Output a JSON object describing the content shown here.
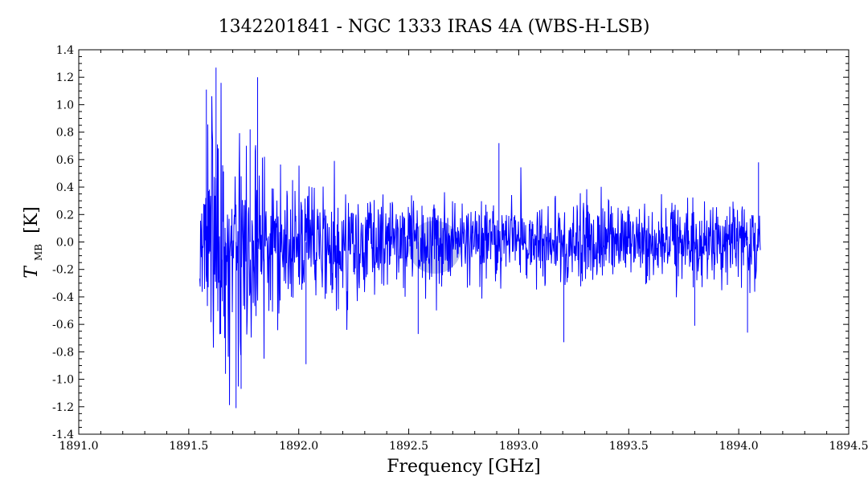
{
  "chart_data": {
    "type": "line",
    "title": "1342201841 - NGC 1333 IRAS 4A (WBS-H-LSB)",
    "xlabel": "Frequency [GHz]",
    "ylabel_symbol": "T",
    "ylabel_subscript": "MB",
    "ylabel_unit": "[K]",
    "xlim": [
      1891.0,
      1894.5
    ],
    "ylim": [
      -1.4,
      1.4
    ],
    "x_ticks": [
      "1891.0",
      "1891.5",
      "1892.0",
      "1892.5",
      "1893.0",
      "1893.5",
      "1894.0",
      "1894.5"
    ],
    "y_ticks": [
      "-1.4",
      "-1.2",
      "-1.0",
      "-0.8",
      "-0.6",
      "-0.4",
      "-0.2",
      "0.0",
      "0.2",
      "0.4",
      "0.6",
      "0.8",
      "1.0",
      "1.2",
      "1.4"
    ],
    "grid": false,
    "line_color": "#0000ff",
    "highlight_color": "#8090d8",
    "series": [
      {
        "x_start": 1891.55,
        "x_end": 1894.1,
        "noise_envelope": {
          "x": [
            1891.55,
            1891.6,
            1891.65,
            1891.7,
            1891.75,
            1891.8,
            1891.9,
            1892.0,
            1892.2,
            1892.5,
            1893.0,
            1893.5,
            1894.0,
            1894.1
          ],
          "sigma": [
            0.3,
            0.38,
            0.4,
            0.4,
            0.36,
            0.3,
            0.26,
            0.24,
            0.2,
            0.17,
            0.15,
            0.15,
            0.16,
            0.17
          ]
        },
        "notable_peaks": [
          {
            "x": 1891.624,
            "y": 1.27
          },
          {
            "x": 1891.813,
            "y": 1.2
          },
          {
            "x": 1891.58,
            "y": 1.11
          },
          {
            "x": 1891.779,
            "y": 0.82
          },
          {
            "x": 1891.715,
            "y": -1.21
          },
          {
            "x": 1891.738,
            "y": -1.07
          },
          {
            "x": 1891.667,
            "y": -0.96
          },
          {
            "x": 1892.033,
            "y": -0.89
          },
          {
            "x": 1892.543,
            "y": -0.67
          },
          {
            "x": 1892.91,
            "y": 0.72
          },
          {
            "x": 1893.205,
            "y": -0.73
          },
          {
            "x": 1893.8,
            "y": -0.61
          },
          {
            "x": 1894.09,
            "y": 0.58
          },
          {
            "x": 1894.04,
            "y": -0.66
          }
        ]
      }
    ]
  }
}
